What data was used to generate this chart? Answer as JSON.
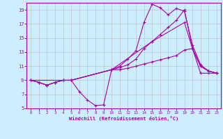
{
  "xlabel": "Windchill (Refroidissement éolien,°C)",
  "bg_color": "#cceeff",
  "line_color": "#aa00aa",
  "grid_color": "#bbbbbb",
  "xlim": [
    -0.5,
    23.5
  ],
  "ylim": [
    5,
    20
  ],
  "xticks": [
    0,
    1,
    2,
    3,
    4,
    5,
    6,
    7,
    8,
    9,
    10,
    11,
    12,
    13,
    14,
    15,
    16,
    17,
    18,
    19,
    20,
    21,
    22,
    23
  ],
  "yticks": [
    5,
    7,
    9,
    11,
    13,
    15,
    17,
    19
  ],
  "line1_x": [
    0,
    1,
    2,
    3,
    4,
    5,
    6,
    7,
    8,
    9,
    10,
    11,
    12,
    13,
    14,
    15,
    16,
    17,
    18,
    19,
    20,
    21,
    22,
    23
  ],
  "line1_y": [
    9,
    8.7,
    8.3,
    8.7,
    9,
    9,
    7.4,
    6.2,
    5.4,
    5.5,
    10.5,
    11.0,
    12.0,
    13.2,
    17.2,
    19.8,
    19.3,
    18.3,
    19.2,
    18.8,
    14.0,
    11.2,
    10.3,
    10.0
  ],
  "line2_x": [
    0,
    1,
    2,
    3,
    4,
    5,
    10,
    11,
    12,
    13,
    14,
    15,
    16,
    17,
    18,
    19,
    20,
    21,
    22,
    23
  ],
  "line2_y": [
    9,
    8.7,
    8.3,
    8.7,
    9,
    9,
    10.5,
    10.8,
    11.2,
    12.0,
    13.5,
    14.5,
    15.5,
    16.5,
    17.5,
    19.0,
    13.5,
    11.0,
    10.3,
    10.0
  ],
  "line3_x": [
    0,
    5,
    10,
    15,
    19,
    20,
    21,
    22,
    23
  ],
  "line3_y": [
    9,
    9,
    10.5,
    14.5,
    17.2,
    13.5,
    11.0,
    10.3,
    10.0
  ],
  "line4_x": [
    0,
    1,
    2,
    3,
    4,
    5,
    10,
    11,
    12,
    13,
    14,
    15,
    16,
    17,
    18,
    19,
    20,
    21,
    22,
    23
  ],
  "line4_y": [
    9,
    8.7,
    8.3,
    8.7,
    9,
    9,
    10.5,
    10.5,
    10.7,
    11.0,
    11.3,
    11.6,
    11.9,
    12.2,
    12.5,
    13.3,
    13.5,
    10.0,
    10.0,
    10.0
  ]
}
